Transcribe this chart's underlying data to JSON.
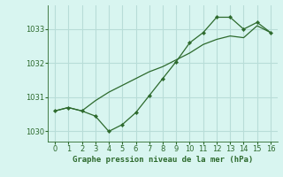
{
  "title": "Graphe pression niveau de la mer (hPa)",
  "x_zigzag": [
    0,
    1,
    2,
    3,
    4,
    5,
    6,
    7,
    8,
    9,
    10,
    11,
    12,
    13,
    14,
    15,
    16
  ],
  "y_zigzag": [
    1030.6,
    1030.7,
    1030.6,
    1030.45,
    1030.0,
    1030.2,
    1030.55,
    1031.05,
    1031.55,
    1032.05,
    1032.6,
    1032.9,
    1033.35,
    1033.35,
    1033.0,
    1033.2,
    1032.9
  ],
  "x_trend": [
    0,
    1,
    2,
    3,
    4,
    5,
    6,
    7,
    8,
    9,
    10,
    11,
    12,
    13,
    14,
    15,
    16
  ],
  "y_trend": [
    1030.6,
    1030.7,
    1030.6,
    1030.9,
    1031.15,
    1031.35,
    1031.55,
    1031.75,
    1031.9,
    1032.1,
    1032.3,
    1032.55,
    1032.7,
    1032.8,
    1032.75,
    1033.1,
    1032.9
  ],
  "line_color": "#2d6a2d",
  "bg_color": "#d8f5f0",
  "grid_color": "#b8ddd8",
  "ylim": [
    1029.7,
    1033.7
  ],
  "xlim": [
    -0.5,
    16.5
  ],
  "yticks": [
    1030,
    1031,
    1032,
    1033
  ],
  "xticks": [
    0,
    1,
    2,
    3,
    4,
    5,
    6,
    7,
    8,
    9,
    10,
    11,
    12,
    13,
    14,
    15,
    16
  ],
  "title_color": "#2d6a2d",
  "title_fontsize": 6.5,
  "tick_fontsize": 6.0,
  "linewidth": 0.9,
  "markersize": 2.2
}
